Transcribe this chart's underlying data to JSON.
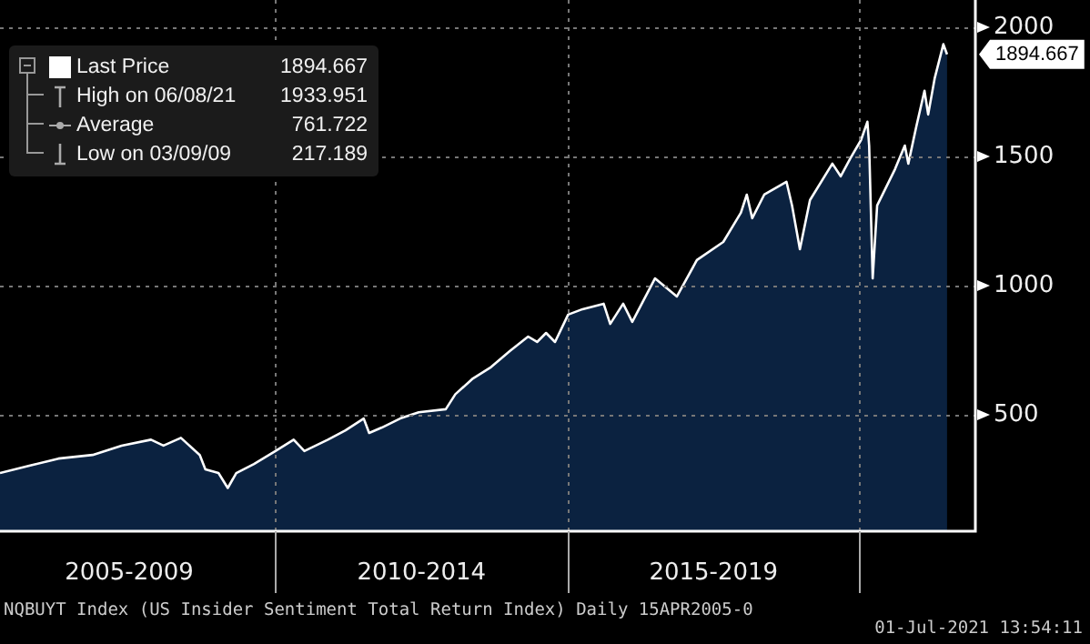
{
  "chart_data": {
    "type": "area",
    "x": [
      "2005-04-15",
      "2005-10-15",
      "2006-04-15",
      "2006-11-15",
      "2007-05-15",
      "2007-11-15",
      "2008-02-01",
      "2008-05-20",
      "2008-09-15",
      "2008-10-20",
      "2009-01-10",
      "2009-03-09",
      "2009-05-01",
      "2009-08-20",
      "2010-01-01",
      "2010-04-25",
      "2010-07-01",
      "2010-11-25",
      "2011-03-15",
      "2011-07-07",
      "2011-08-10",
      "2011-10-28",
      "2012-02-20",
      "2012-06-15",
      "2012-12-01",
      "2013-01-30",
      "2013-05-20",
      "2013-09-10",
      "2014-01-05",
      "2014-04-30",
      "2014-06-25",
      "2014-08-20",
      "2014-10-15",
      "2015-01-05",
      "2015-04-05",
      "2015-08-15",
      "2015-09-25",
      "2015-12-15",
      "2016-02-10",
      "2016-07-01",
      "2016-11-15",
      "2017-03-20",
      "2017-09-01",
      "2017-12-20",
      "2018-01-26",
      "2018-03-01",
      "2018-05-15",
      "2018-10-01",
      "2018-11-05",
      "2018-12-24",
      "2019-02-25",
      "2019-07-15",
      "2019-09-05",
      "2019-11-05",
      "2020-01-10",
      "2020-02-19",
      "2020-03-01",
      "2020-03-23",
      "2020-04-20",
      "2020-08-10",
      "2020-10-10",
      "2020-11-01",
      "2020-12-20",
      "2021-02-10",
      "2021-03-05",
      "2021-04-15",
      "2021-06-08",
      "2021-07-01"
    ],
    "series": [
      {
        "name": "Last Price",
        "color": "#ffffff",
        "values": [
          275,
          303,
          331,
          345,
          381,
          404,
          381,
          411,
          345,
          289,
          275,
          217.189,
          275,
          310,
          360,
          404,
          360,
          404,
          440,
          486,
          430,
          451,
          486,
          510,
          522,
          580,
          641,
          685,
          747,
          803,
          782,
          817,
          782,
          888,
          909,
          930,
          852,
          930,
          860,
          1028,
          958,
          1099,
          1169,
          1282,
          1352,
          1261,
          1352,
          1402,
          1310,
          1141,
          1331,
          1472,
          1423,
          1493,
          1563,
          1634,
          1542,
          1028,
          1310,
          1451,
          1542,
          1472,
          1613,
          1754,
          1662,
          1803,
          1933.951,
          1894.667
        ]
      }
    ],
    "xlim": [
      "2005-04-15",
      "2021-12-25"
    ],
    "xticks": [
      {
        "value": "2007-07-02",
        "label": "2005-2009"
      },
      {
        "value": "2010-01-01",
        "label": null
      },
      {
        "value": "2012-07-02",
        "label": "2010-2014"
      },
      {
        "value": "2015-01-01",
        "label": null
      },
      {
        "value": "2017-07-02",
        "label": "2015-2019"
      },
      {
        "value": "2020-01-01",
        "label": null
      }
    ],
    "ylim": [
      50,
      2105
    ],
    "yticks": [
      500,
      1000,
      1500,
      2000
    ],
    "grid": true,
    "legend": "top left",
    "annotations": [
      "1894.667",
      "High on 06/08/21",
      "1933.951",
      "Average",
      "761.722",
      "Low on 03/09/09",
      "217.189",
      {
        "text": "1894.667",
        "x": "2021-07-01",
        "y": 1894.667
      },
      "NQBUYT Index (US Insider Sentiment Total Return Index)  Daily 15APR2005-0",
      "01-Jul-2021 13:54:11"
    ]
  }
}
